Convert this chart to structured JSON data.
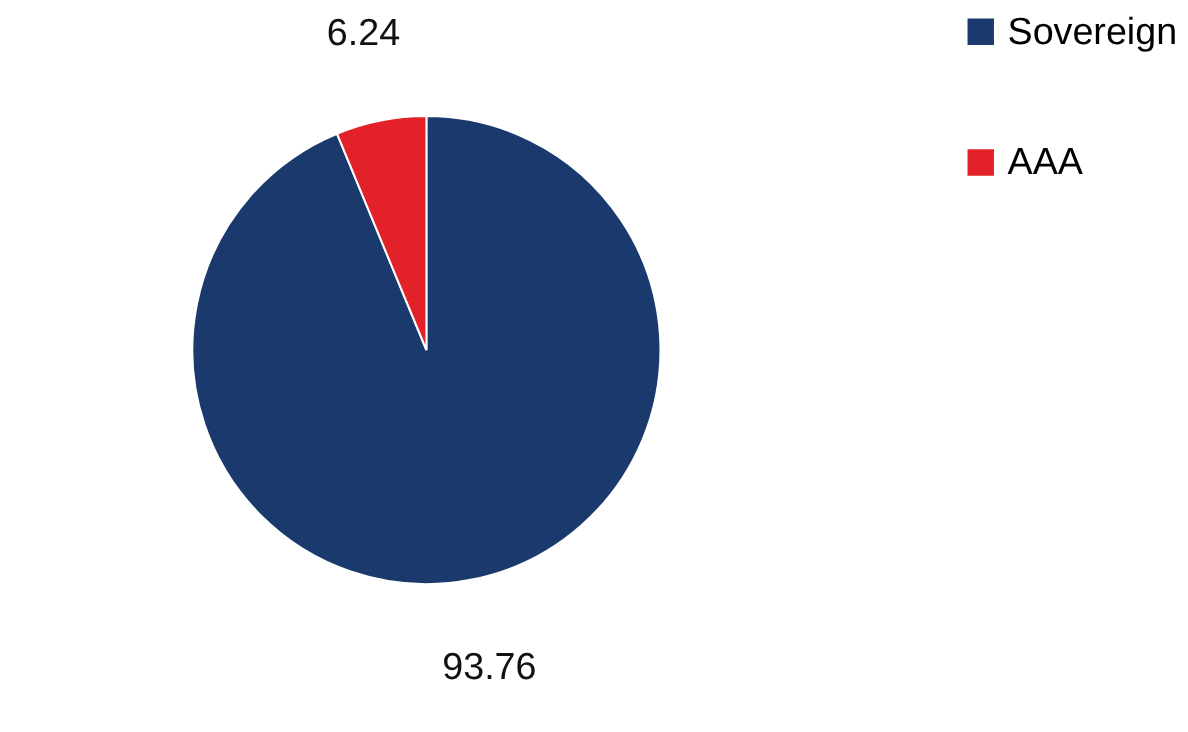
{
  "chart_data": {
    "type": "pie",
    "categories": [
      "Sovereign",
      "AAA"
    ],
    "values": [
      93.76,
      6.24
    ],
    "colors": [
      "#1a3a6e",
      "#e32128"
    ],
    "data_labels": true,
    "legend": "right"
  }
}
